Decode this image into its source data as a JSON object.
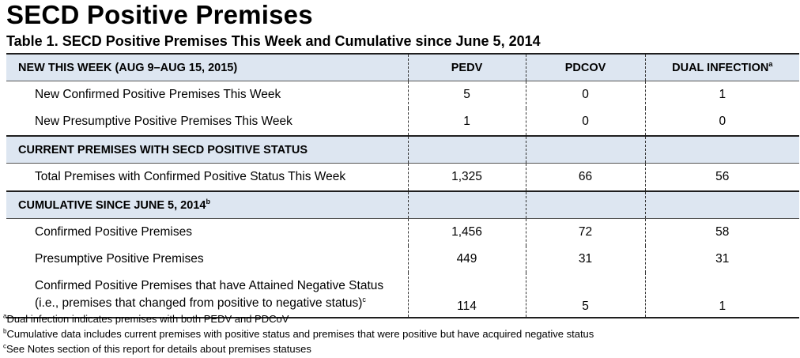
{
  "title": "SECD Positive Premises",
  "table_title": "Table 1. SECD Positive Premises This Week and Cumulative since June 5, 2014",
  "columns": {
    "pedv": "PEDV",
    "pdcov": "PDCOV",
    "dual": "DUAL INFECTION",
    "dual_sup": "a"
  },
  "sections": {
    "new_week": {
      "header": "NEW THIS WEEK  (AUG 9–AUG 15, 2015)",
      "rows": [
        {
          "label": "New Confirmed Positive Premises This Week",
          "pedv": "5",
          "pdcov": "0",
          "dual": "1"
        },
        {
          "label": "New Presumptive Positive Premises This Week",
          "pedv": "1",
          "pdcov": "0",
          "dual": "0"
        }
      ]
    },
    "current": {
      "header": "CURRENT PREMISES WITH SECD POSITIVE STATUS",
      "rows": [
        {
          "label": "Total Premises with Confirmed Positive Status This Week",
          "pedv": "1,325",
          "pdcov": "66",
          "dual": "56"
        }
      ]
    },
    "cumulative": {
      "header": "CUMULATIVE SINCE JUNE 5, 2014",
      "header_sup": "b",
      "rows": [
        {
          "label": "Confirmed Positive Premises",
          "pedv": "1,456",
          "pdcov": "72",
          "dual": "58"
        },
        {
          "label": "Presumptive Positive Premises",
          "pedv": "449",
          "pdcov": "31",
          "dual": "31"
        },
        {
          "label_line1": "Confirmed Positive Premises that have Attained Negative Status",
          "label_line2": "(i.e., premises that changed from positive to negative status)",
          "label_sup": "c",
          "pedv": "114",
          "pdcov": "5",
          "dual": "1"
        }
      ]
    }
  },
  "footnotes": [
    {
      "mark": "a",
      "text": "Dual infection indicates premises with both PEDV and PDCoV"
    },
    {
      "mark": "b",
      "text": "Cumulative data includes current premises with positive status and premises that were positive but have acquired negative status"
    },
    {
      "mark": "c",
      "text": "See Notes section of this report for details about premises statuses"
    }
  ]
}
